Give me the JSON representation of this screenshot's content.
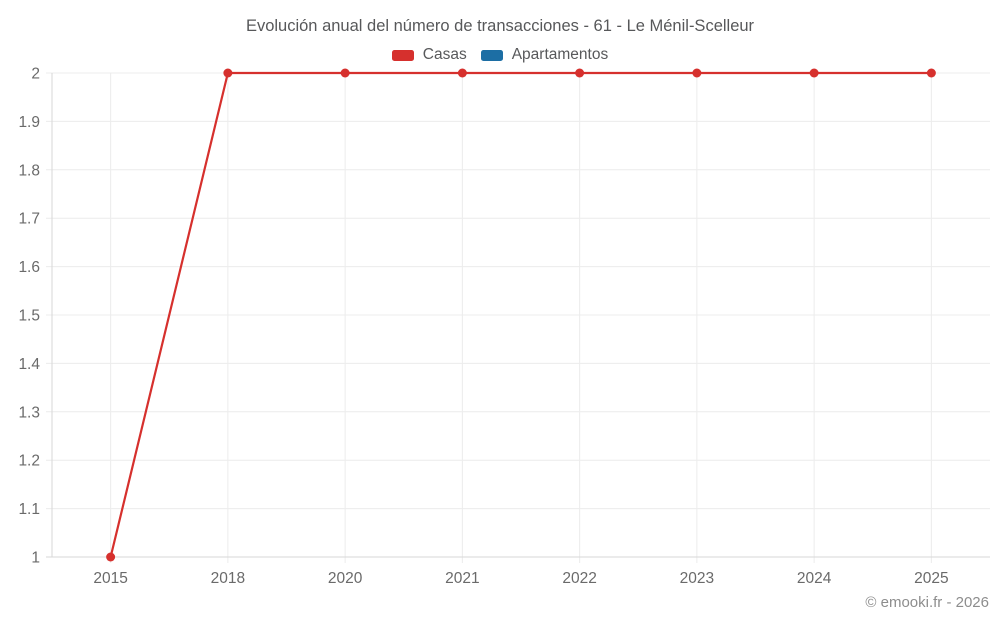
{
  "title": "Evolución anual del número de transacciones - 61 - Le Ménil-Scelleur",
  "footer": "© emooki.fr - 2026",
  "legend": [
    {
      "label": "Casas",
      "color": "#d6302d"
    },
    {
      "label": "Apartamentos",
      "color": "#1c6ea4"
    }
  ],
  "colors": {
    "background": "#ffffff",
    "grid": "#ececec",
    "axis_border": "#d7d7d7",
    "tick_text": "#6a6a6a",
    "title_text": "#57585a",
    "legend_text": "#58595b",
    "footer_text": "#8d8d8d",
    "casas": "#d6302d",
    "apartamentos": "#1c6ea4"
  },
  "chart_data": {
    "type": "line",
    "title": "Evolución anual del número de transacciones - 61 - Le Ménil-Scelleur",
    "xlabel": "",
    "ylabel": "",
    "categories": [
      "2015",
      "2018",
      "2020",
      "2021",
      "2022",
      "2023",
      "2024",
      "2025"
    ],
    "series": [
      {
        "name": "Casas",
        "color": "#d6302d",
        "values": [
          1,
          2,
          2,
          2,
          2,
          2,
          2,
          2
        ]
      },
      {
        "name": "Apartamentos",
        "color": "#1c6ea4",
        "values": []
      }
    ],
    "ylim": [
      1,
      2
    ],
    "ytick_step": 0.1,
    "ytick_labels": [
      "1",
      "1.1",
      "1.2",
      "1.3",
      "1.4",
      "1.5",
      "1.6",
      "1.7",
      "1.8",
      "1.9",
      "2"
    ],
    "grid": true,
    "legend_position": "top",
    "point_radius": 4.5,
    "line_width": 2.2
  }
}
